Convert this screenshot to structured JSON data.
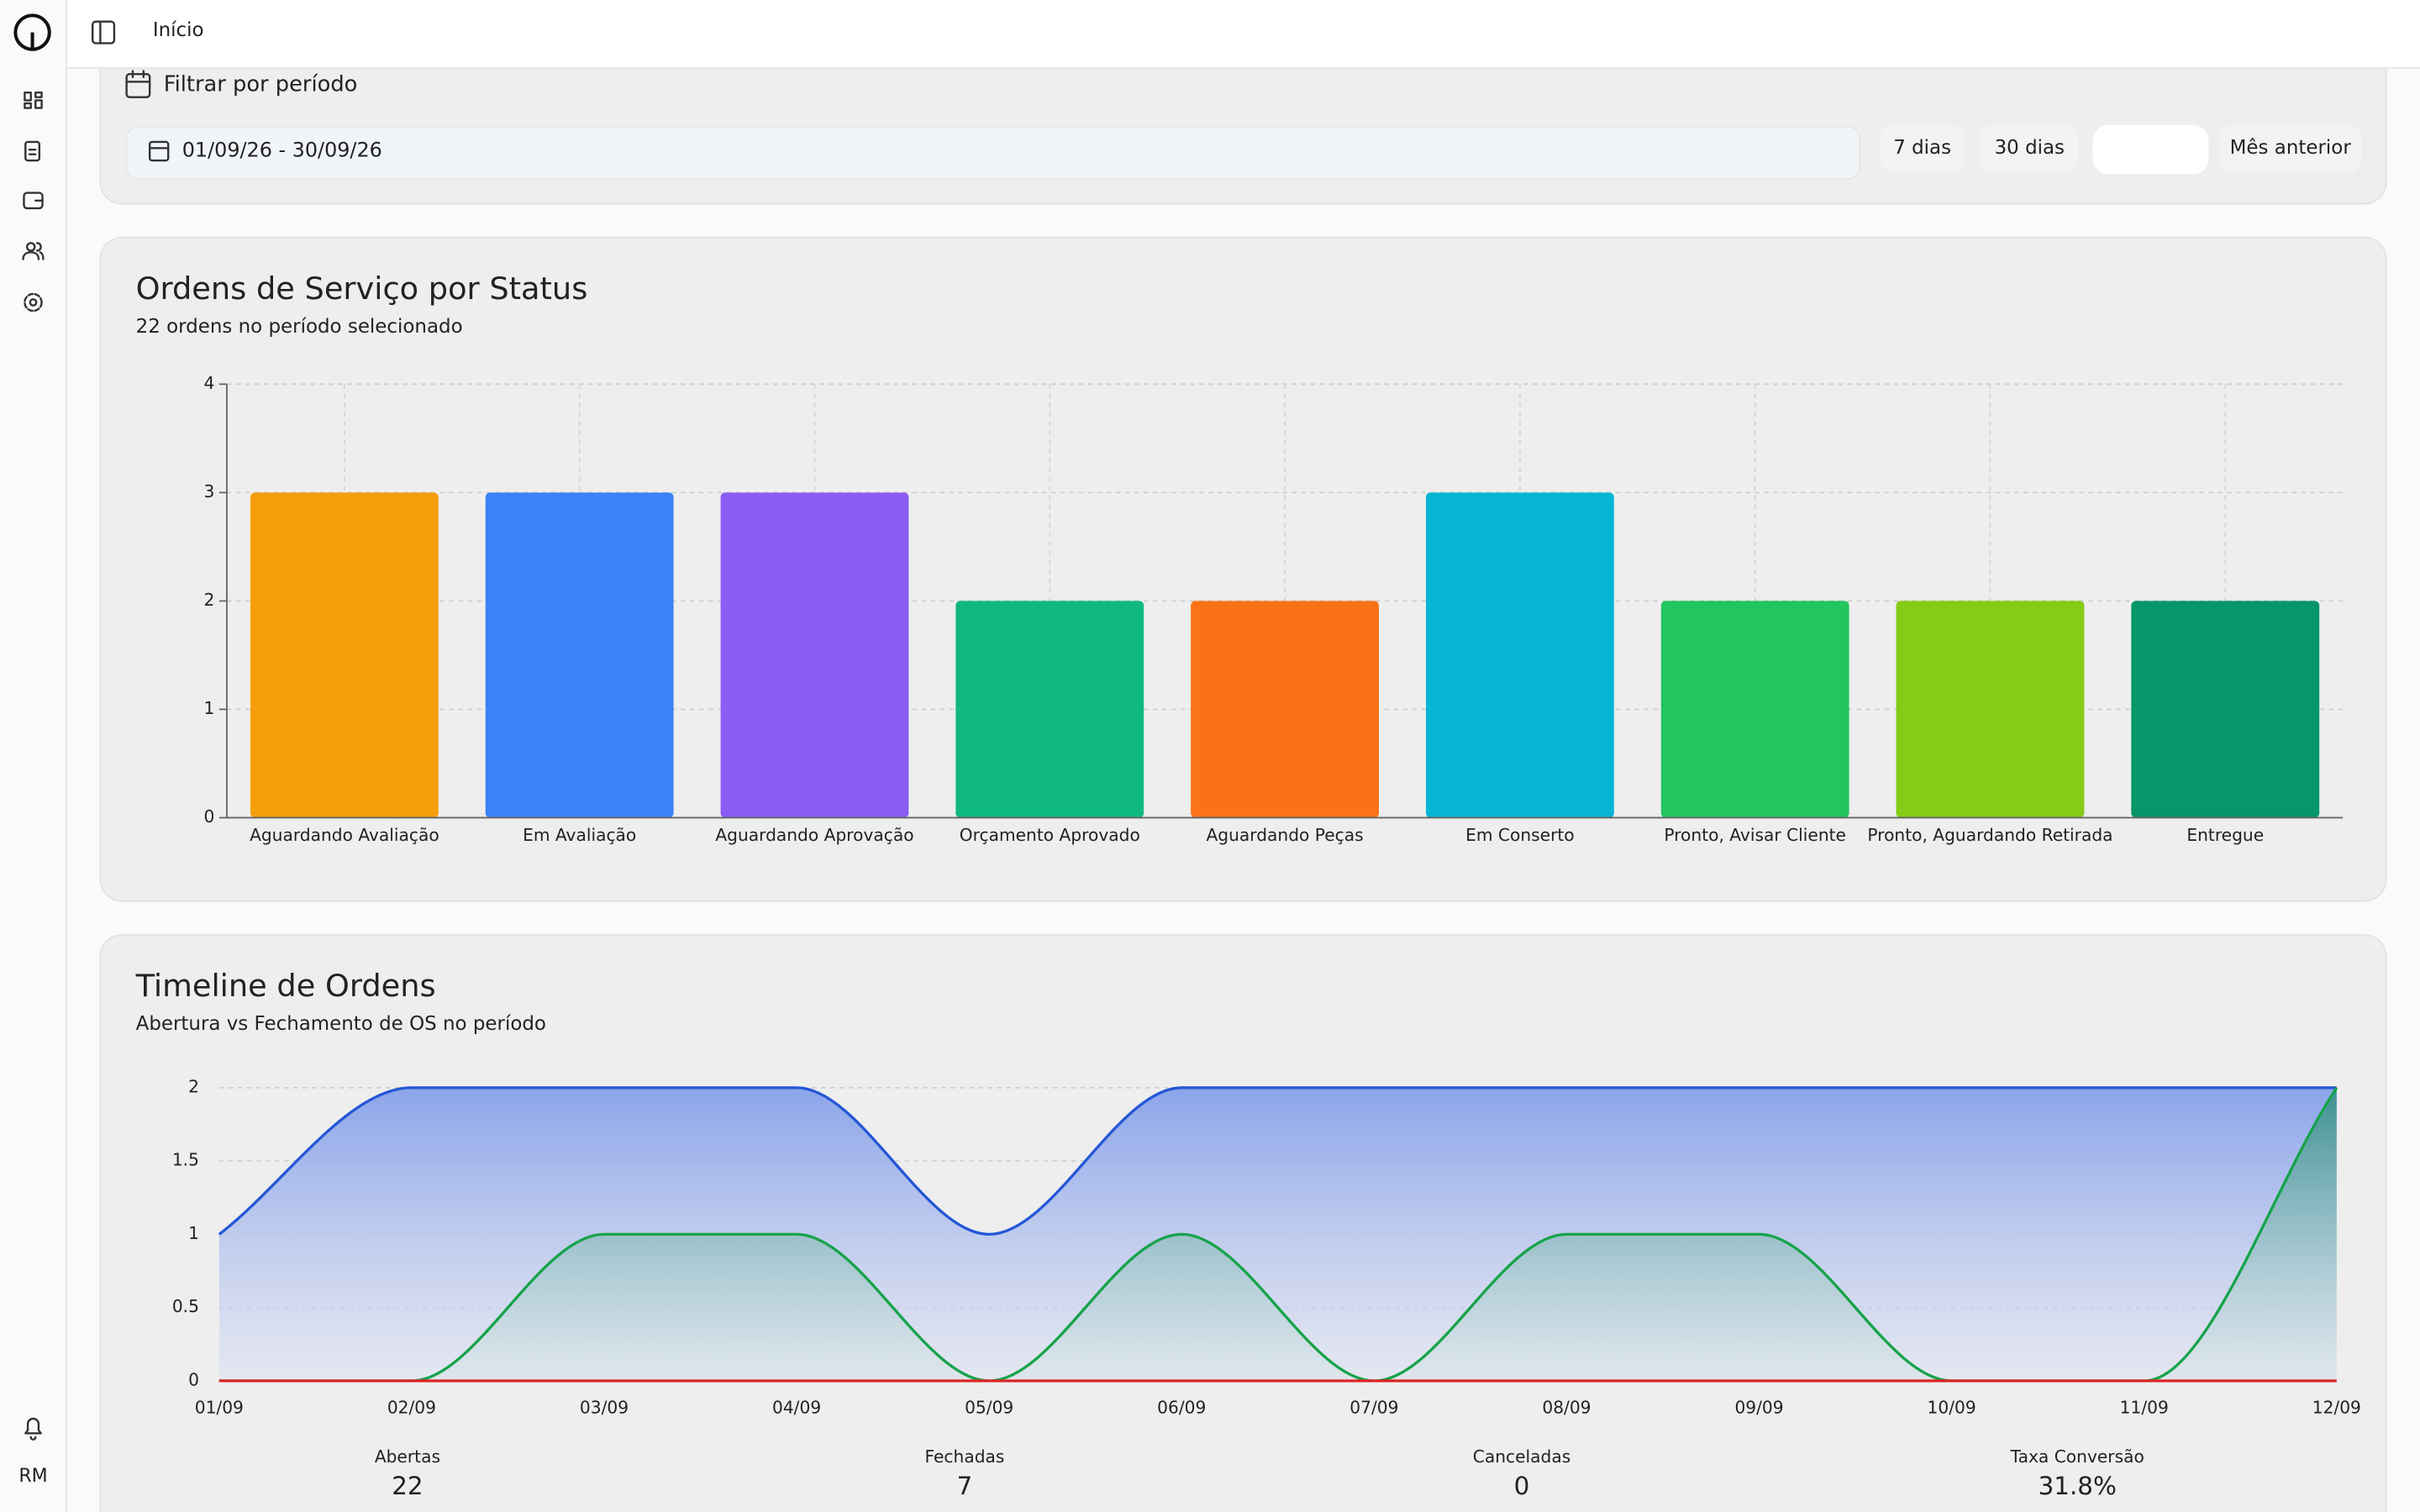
{
  "header": {
    "breadcrumb": "Início",
    "user": "RM"
  },
  "filter": {
    "title": "Filtrar por período",
    "range": "01/09/26 - 30/09/26",
    "buttons": [
      "7 dias",
      "30 dias",
      "Mês anterior"
    ]
  },
  "chart_data": [
    {
      "type": "bar",
      "title": "Ordens de Serviço por Status",
      "subtitle": "22 ordens no período selecionado",
      "categories": [
        "Aguardando Avaliação",
        "Em Avaliação",
        "Aguardando Aprovação",
        "Orçamento Aprovado",
        "Aguardando Peças",
        "Em Conserto",
        "Pronto, Avisar Cliente",
        "Pronto, Aguardando Retirada",
        "Entregue"
      ],
      "values": [
        3,
        3,
        3,
        2,
        2,
        3,
        2,
        2,
        2
      ],
      "colors": [
        "#f59e0b",
        "#3b82f6",
        "#8b5cf6",
        "#10b981",
        "#f97316",
        "#06b6d4",
        "#22c55e",
        "#84cc16",
        "#059669"
      ],
      "ylim": [
        0,
        4
      ],
      "yticks": [
        0,
        1,
        2,
        3,
        4
      ],
      "grid": true
    },
    {
      "type": "line",
      "title": "Timeline de Ordens",
      "subtitle": "Abertura vs Fechamento de OS no período",
      "categories": [
        "01/09",
        "02/09",
        "03/09",
        "04/09",
        "05/09",
        "06/09",
        "07/09",
        "08/09",
        "09/09",
        "10/09",
        "11/09",
        "12/09"
      ],
      "series": [
        {
          "name": "Abertas",
          "color": "#2457d6",
          "fill": "#6f8fe6",
          "values": [
            1,
            2,
            2,
            2,
            1,
            2,
            2,
            2,
            2,
            2,
            2,
            2
          ]
        },
        {
          "name": "Fechadas",
          "color": "#16a34a",
          "fill": "#2f8f7f",
          "values": [
            0,
            0,
            1,
            1,
            0,
            1,
            0,
            1,
            1,
            0,
            0,
            2
          ]
        },
        {
          "name": "Canceladas",
          "color": "#dc2626",
          "fill": null,
          "values": [
            0,
            0,
            0,
            0,
            0,
            0,
            0,
            0,
            0,
            0,
            0,
            0
          ]
        }
      ],
      "ylim": [
        0,
        2
      ],
      "yticks": [
        0,
        0.5,
        1,
        1.5,
        2
      ],
      "grid": true
    }
  ],
  "stats": [
    {
      "label": "Abertas",
      "value": "22",
      "color": "#3b82f6"
    },
    {
      "label": "Fechadas",
      "value": "7",
      "color": "#22c55e"
    },
    {
      "label": "Canceladas",
      "value": "0",
      "color": "#ef4444"
    },
    {
      "label": "Taxa Conversão",
      "value": "31.8%",
      "color": "#111111"
    }
  ]
}
